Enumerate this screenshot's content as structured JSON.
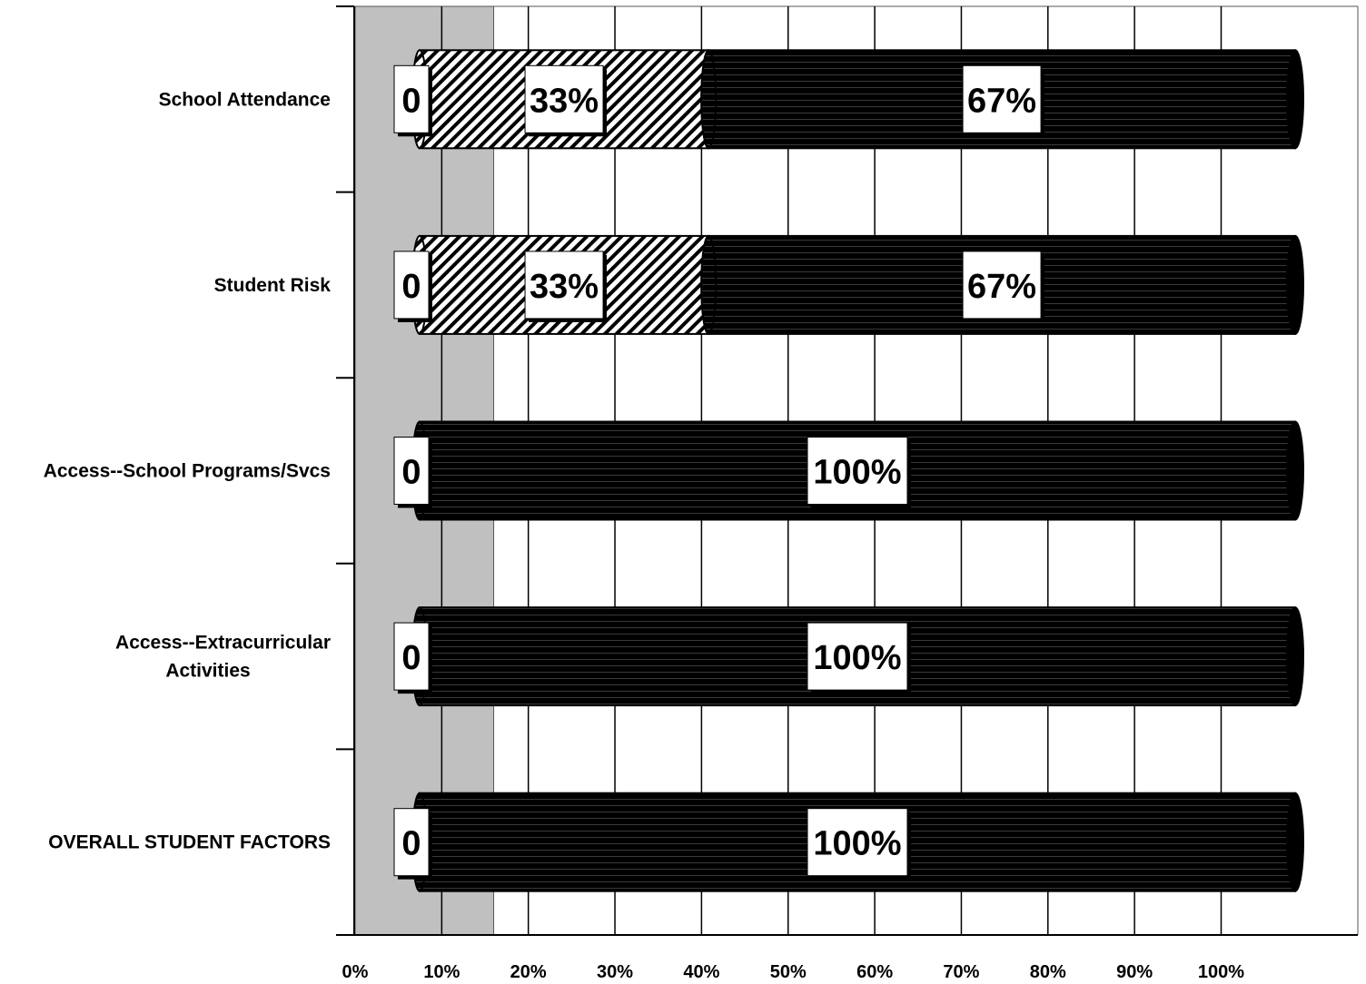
{
  "chart_data": {
    "type": "bar",
    "orientation": "horizontal",
    "stacked": true,
    "categories": [
      "School Attendance",
      "Student Risk",
      "Access--School Programs/Svcs",
      "Access--Extracurricular Activities",
      "OVERALL STUDENT FACTORS"
    ],
    "category_lines": [
      [
        "School Attendance"
      ],
      [
        "Student Risk"
      ],
      [
        "Access--School Programs/Svcs"
      ],
      [
        "Access--Extracurricular",
        "Activities"
      ],
      [
        "OVERALL STUDENT FACTORS"
      ]
    ],
    "series": [
      {
        "values": [
          0,
          0,
          0,
          0,
          0
        ],
        "labels": [
          "0",
          "0",
          "0",
          "0",
          "0"
        ],
        "color": "#ffffff"
      },
      {
        "values": [
          33,
          33,
          0,
          0,
          0
        ],
        "labels": [
          "33%",
          "33%",
          "",
          "",
          ""
        ],
        "pattern": "diagonal-hatch"
      },
      {
        "values": [
          67,
          67,
          100,
          100,
          100
        ],
        "labels": [
          "67%",
          "67%",
          "100%",
          "100%",
          "100%"
        ],
        "color": "#000000"
      }
    ],
    "x_ticks": [
      "0%",
      "10%",
      "20%",
      "30%",
      "40%",
      "50%",
      "60%",
      "70%",
      "80%",
      "90%",
      "100%"
    ],
    "xlim": [
      0,
      100
    ],
    "shaded_band": [
      0,
      16
    ],
    "grid": true,
    "legend": "none",
    "colors": {
      "band": "#c0c0c0",
      "bar": "#000000",
      "grid": "#000000",
      "label_box": "#ffffff"
    }
  }
}
